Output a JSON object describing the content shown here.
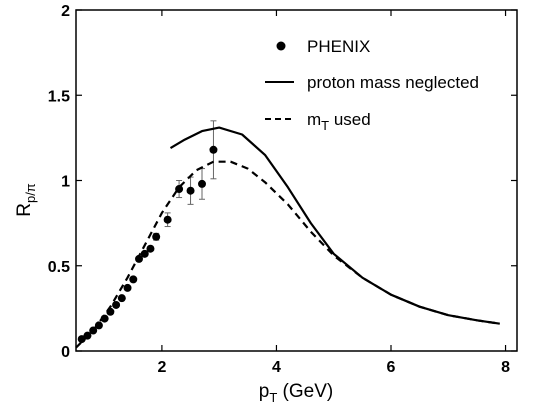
{
  "chart_data": {
    "type": "line",
    "xlabel": "p",
    "xlabel_sub": "T",
    "xlabel_unit": " (GeV)",
    "ylabel": "R",
    "ylabel_sub": "p/π",
    "xlim": [
      0.5,
      8.2
    ],
    "ylim": [
      0,
      2
    ],
    "xticks": [
      2,
      4,
      6,
      8
    ],
    "yticks": [
      0,
      0.5,
      1,
      1.5,
      2
    ],
    "ytick_labels": [
      "0",
      "0.5",
      "1",
      "1.5",
      "2"
    ],
    "legend_position": "top-right",
    "series": [
      {
        "name": "PHENIX",
        "kind": "points",
        "color": "#000000",
        "x": [
          0.6,
          0.7,
          0.8,
          0.9,
          1.0,
          1.1,
          1.2,
          1.3,
          1.4,
          1.5,
          1.6,
          1.7,
          1.8,
          1.9,
          2.1,
          2.3,
          2.5,
          2.7,
          2.9
        ],
        "y": [
          0.07,
          0.09,
          0.12,
          0.15,
          0.19,
          0.23,
          0.27,
          0.31,
          0.37,
          0.42,
          0.54,
          0.57,
          0.6,
          0.67,
          0.77,
          0.95,
          0.94,
          0.98,
          1.18
        ],
        "err": [
          0,
          0,
          0,
          0,
          0,
          0,
          0,
          0,
          0,
          0,
          0,
          0,
          0,
          0.02,
          0.04,
          0.05,
          0.08,
          0.09,
          0.17
        ]
      },
      {
        "name": "proton mass neglected",
        "kind": "line",
        "dash": "solid",
        "color": "#000000",
        "x": [
          2.15,
          2.4,
          2.7,
          3.0,
          3.4,
          3.8,
          4.2,
          4.6,
          5.0,
          5.5,
          6.0,
          6.5,
          7.0,
          7.5,
          7.9
        ],
        "y": [
          1.19,
          1.24,
          1.29,
          1.31,
          1.27,
          1.15,
          0.96,
          0.75,
          0.57,
          0.43,
          0.33,
          0.26,
          0.21,
          0.18,
          0.16
        ]
      },
      {
        "name": "m",
        "name_sub": "T",
        "name_suffix": " used",
        "kind": "line",
        "dash": "dashed",
        "color": "#000000",
        "x": [
          0.5,
          0.8,
          1.1,
          1.4,
          1.7,
          2.0,
          2.3,
          2.6,
          2.9,
          3.2,
          3.5,
          3.8,
          4.2,
          4.6,
          5.0,
          5.5,
          6.0,
          6.5,
          7.0,
          7.5,
          7.9
        ],
        "y": [
          0.02,
          0.12,
          0.26,
          0.43,
          0.62,
          0.81,
          0.96,
          1.06,
          1.11,
          1.11,
          1.07,
          0.99,
          0.86,
          0.7,
          0.56,
          0.43,
          0.33,
          0.26,
          0.21,
          0.18,
          0.16
        ]
      }
    ]
  }
}
